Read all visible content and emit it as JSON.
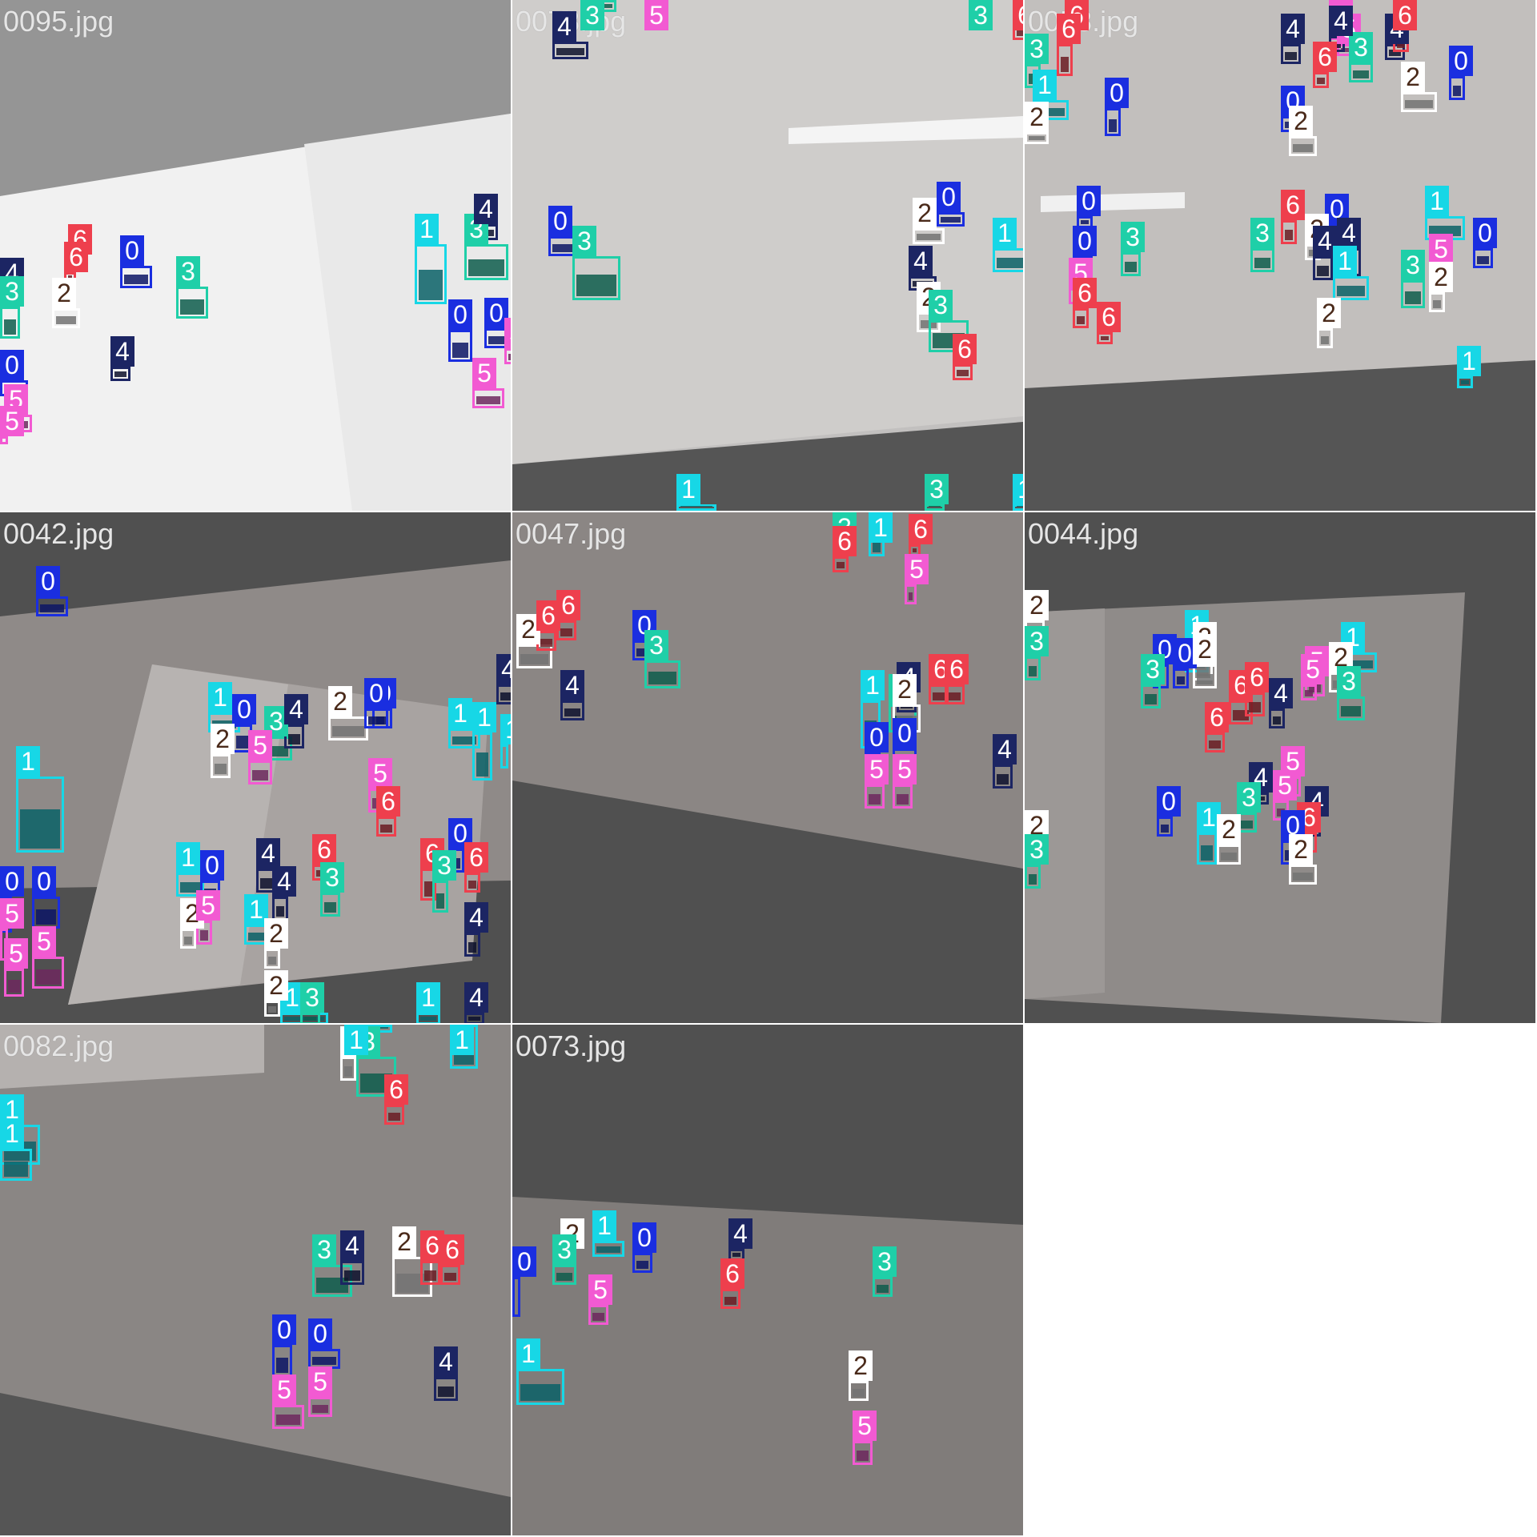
{
  "tiles": [
    {
      "name": "0095.jpg",
      "detections": [
        {
          "c": "1"
        },
        {
          "c": "3"
        },
        {
          "c": "4"
        },
        {
          "c": "0"
        },
        {
          "c": "0"
        },
        {
          "c": "5"
        },
        {
          "c": "5"
        },
        {
          "c": "0"
        },
        {
          "c": "3"
        },
        {
          "c": "6"
        },
        {
          "c": "6"
        },
        {
          "c": "2"
        },
        {
          "c": "4"
        },
        {
          "c": "4"
        },
        {
          "c": "0"
        },
        {
          "c": "5"
        },
        {
          "c": "5"
        },
        {
          "c": "3"
        }
      ]
    },
    {
      "name": "0078.jpg",
      "detections": [
        {
          "c": "3"
        },
        {
          "c": "5"
        },
        {
          "c": "4"
        },
        {
          "c": "3"
        },
        {
          "c": "6"
        },
        {
          "c": "0"
        },
        {
          "c": "3"
        },
        {
          "c": "2"
        },
        {
          "c": "0"
        },
        {
          "c": "1"
        },
        {
          "c": "5"
        },
        {
          "c": "4"
        },
        {
          "c": "2"
        },
        {
          "c": "3"
        },
        {
          "c": "6"
        },
        {
          "c": "1"
        },
        {
          "c": "3"
        },
        {
          "c": "1"
        }
      ]
    },
    {
      "name": "0058.jpg",
      "detections": [
        {
          "c": "6"
        },
        {
          "c": "6"
        },
        {
          "c": "5"
        },
        {
          "c": "5"
        },
        {
          "c": "4"
        },
        {
          "c": "4"
        },
        {
          "c": "6"
        },
        {
          "c": "6"
        },
        {
          "c": "3"
        },
        {
          "c": "3"
        },
        {
          "c": "0"
        },
        {
          "c": "0"
        },
        {
          "c": "1"
        },
        {
          "c": "2"
        },
        {
          "c": "2"
        },
        {
          "c": "0"
        },
        {
          "c": "0"
        },
        {
          "c": "2"
        },
        {
          "c": "6"
        },
        {
          "c": "0"
        },
        {
          "c": "2"
        },
        {
          "c": "4"
        },
        {
          "c": "1"
        },
        {
          "c": "0"
        },
        {
          "c": "0"
        },
        {
          "c": "3"
        },
        {
          "c": "3"
        },
        {
          "c": "5"
        },
        {
          "c": "4"
        },
        {
          "c": "1"
        },
        {
          "c": "5"
        },
        {
          "c": "3"
        },
        {
          "c": "2"
        },
        {
          "c": "6"
        },
        {
          "c": "2"
        },
        {
          "c": "6"
        },
        {
          "c": "4"
        },
        {
          "c": "1"
        }
      ]
    },
    {
      "name": "0042.jpg",
      "detections": [
        {
          "c": "0"
        },
        {
          "c": "0"
        },
        {
          "c": "5"
        },
        {
          "c": "4"
        },
        {
          "c": "1"
        },
        {
          "c": "1"
        },
        {
          "c": "3"
        },
        {
          "c": "0"
        },
        {
          "c": "4"
        },
        {
          "c": "2"
        },
        {
          "c": "0"
        },
        {
          "c": "5"
        },
        {
          "c": "1"
        },
        {
          "c": "2"
        },
        {
          "c": "5"
        },
        {
          "c": "6"
        },
        {
          "c": "1"
        },
        {
          "c": "1"
        },
        {
          "c": "0"
        },
        {
          "c": "0"
        },
        {
          "c": "5"
        },
        {
          "c": "5"
        },
        {
          "c": "1"
        },
        {
          "c": "0"
        },
        {
          "c": "4"
        },
        {
          "c": "4"
        },
        {
          "c": "6"
        },
        {
          "c": "3"
        },
        {
          "c": "6"
        },
        {
          "c": "3"
        },
        {
          "c": "0"
        },
        {
          "c": "6"
        },
        {
          "c": "4"
        },
        {
          "c": "2"
        },
        {
          "c": "5"
        },
        {
          "c": "1"
        },
        {
          "c": "2"
        },
        {
          "c": "1"
        },
        {
          "c": "1"
        },
        {
          "c": "4"
        },
        {
          "c": "3"
        },
        {
          "c": "2"
        }
      ]
    },
    {
      "name": "0047.jpg",
      "detections": [
        {
          "c": "2"
        },
        {
          "c": "6"
        },
        {
          "c": "6"
        },
        {
          "c": "0"
        },
        {
          "c": "3"
        },
        {
          "c": "4"
        },
        {
          "c": "1"
        },
        {
          "c": "3"
        },
        {
          "c": "4"
        },
        {
          "c": "6"
        },
        {
          "c": "6"
        },
        {
          "c": "2"
        },
        {
          "c": "0"
        },
        {
          "c": "0"
        },
        {
          "c": "5"
        },
        {
          "c": "5"
        },
        {
          "c": "4"
        },
        {
          "c": "3"
        },
        {
          "c": "6"
        },
        {
          "c": "1"
        },
        {
          "c": "5"
        },
        {
          "c": "6"
        }
      ]
    },
    {
      "name": "0044.jpg",
      "detections": [
        {
          "c": "2"
        },
        {
          "c": "3"
        },
        {
          "c": "1"
        },
        {
          "c": "0"
        },
        {
          "c": "0"
        },
        {
          "c": "3"
        },
        {
          "c": "2"
        },
        {
          "c": "2"
        },
        {
          "c": "6"
        },
        {
          "c": "4"
        },
        {
          "c": "1"
        },
        {
          "c": "2"
        },
        {
          "c": "5"
        },
        {
          "c": "3"
        },
        {
          "c": "5"
        },
        {
          "c": "6"
        },
        {
          "c": "6"
        },
        {
          "c": "4"
        },
        {
          "c": "5"
        },
        {
          "c": "5"
        },
        {
          "c": "4"
        },
        {
          "c": "3"
        },
        {
          "c": "0"
        },
        {
          "c": "1"
        },
        {
          "c": "2"
        },
        {
          "c": "6"
        },
        {
          "c": "0"
        },
        {
          "c": "2"
        },
        {
          "c": "2"
        },
        {
          "c": "3"
        }
      ]
    },
    {
      "name": "0082.jpg",
      "detections": [
        {
          "c": "2"
        },
        {
          "c": "3"
        },
        {
          "c": "1"
        },
        {
          "c": "1"
        },
        {
          "c": "6"
        },
        {
          "c": "1"
        },
        {
          "c": "1"
        },
        {
          "c": "3"
        },
        {
          "c": "4"
        },
        {
          "c": "2"
        },
        {
          "c": "6"
        },
        {
          "c": "6"
        },
        {
          "c": "0"
        },
        {
          "c": "0"
        },
        {
          "c": "5"
        },
        {
          "c": "5"
        },
        {
          "c": "4"
        }
      ]
    },
    {
      "name": "0073.jpg",
      "detections": [
        {
          "c": "2"
        },
        {
          "c": "1"
        },
        {
          "c": "3"
        },
        {
          "c": "0"
        },
        {
          "c": "4"
        },
        {
          "c": "6"
        },
        {
          "c": "3"
        },
        {
          "c": "5"
        },
        {
          "c": "0"
        },
        {
          "c": "1"
        },
        {
          "c": "2"
        },
        {
          "c": "5"
        }
      ]
    }
  ],
  "class_colors": {
    "0": "#1a2ee0",
    "1": "#17d7e6",
    "2": "#ffffff",
    "3": "#1fcfa8",
    "4": "#1c2563",
    "5": "#f25ad2",
    "6": "#ee3f4d"
  }
}
